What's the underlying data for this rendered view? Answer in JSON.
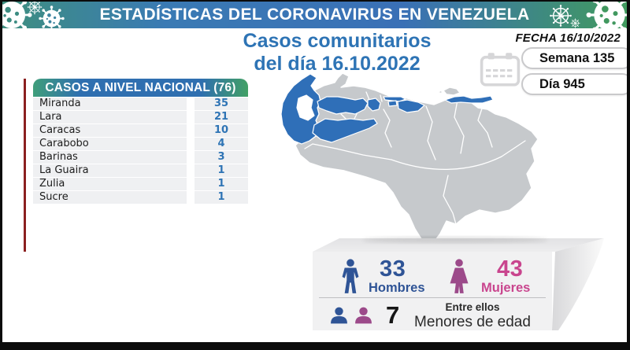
{
  "header": {
    "title": "ESTADÍSTICAS DEL CORONAVIRUS EN VENEZUELA"
  },
  "subtitle": {
    "line1": "Casos comunitarios",
    "line2": "del día 16.10.2022"
  },
  "side_info": {
    "fecha": "FECHA 16/10/2022",
    "semana": "Semana 135",
    "dia": "Día 945"
  },
  "table": {
    "title": "CASOS A NIVEL NACIONAL (76)",
    "rows": [
      {
        "state": "Miranda",
        "cases": "35"
      },
      {
        "state": "Lara",
        "cases": "21"
      },
      {
        "state": "Caracas",
        "cases": "10"
      },
      {
        "state": "Carabobo",
        "cases": "4"
      },
      {
        "state": "Barinas",
        "cases": "3"
      },
      {
        "state": "La Guaira",
        "cases": "1"
      },
      {
        "state": "Zulia",
        "cases": "1"
      },
      {
        "state": "Sucre",
        "cases": "1"
      }
    ]
  },
  "stats": {
    "men_value": "33",
    "men_label": "Hombres",
    "women_value": "43",
    "women_label": "Mujeres",
    "minors_intro": "Entre ellos",
    "minors_value": "7",
    "minors_label": "Menores de edad"
  },
  "map": {
    "highlighted_states": [
      "Zulia",
      "Lara",
      "Barinas",
      "Carabobo",
      "Caracas",
      "La Guaira",
      "Miranda",
      "Sucre"
    ]
  },
  "colors": {
    "title_blue": "#2e74b5",
    "value_blue": "#2e74b5",
    "accent_red": "#8b2020",
    "map_highlight": "#2f6fb8",
    "map_base": "#c6c9cc",
    "men_navy": "#2f5496",
    "women_magenta": "#c9458e"
  },
  "chart_data": {
    "type": "table",
    "title": "CASOS A NIVEL NACIONAL (76)",
    "categories": [
      "Miranda",
      "Lara",
      "Caracas",
      "Carabobo",
      "Barinas",
      "La Guaira",
      "Zulia",
      "Sucre"
    ],
    "values": [
      35,
      21,
      10,
      4,
      3,
      1,
      1,
      1
    ],
    "total": 76,
    "annotations": [
      "Casos comunitarios del día 16.10.2022",
      "FECHA 16/10/2022",
      "Semana 135",
      "Día 945",
      "33 Hombres",
      "43 Mujeres",
      "Entre ellos 7 Menores de edad"
    ]
  }
}
